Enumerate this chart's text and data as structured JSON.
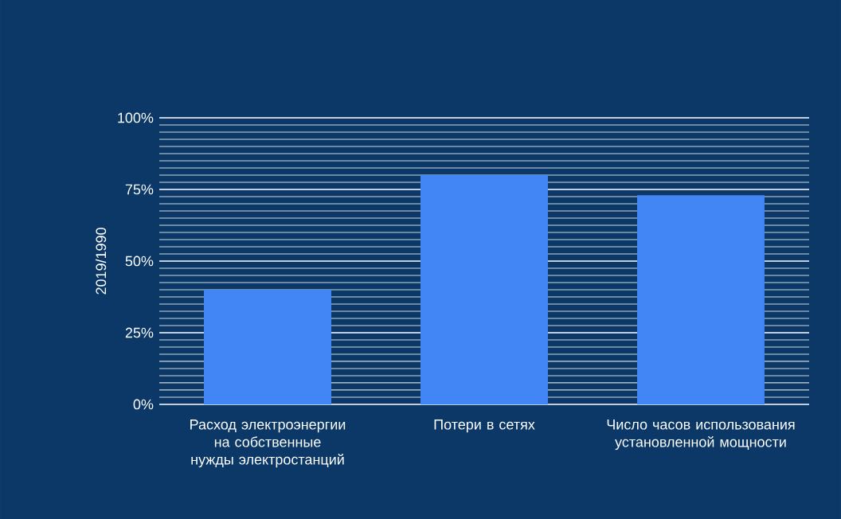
{
  "chart_data": {
    "type": "bar",
    "ylabel": "2019/1990",
    "categories": [
      "Расход электроэнергии на собственные нужды электростанций",
      "Потери в сетях",
      "Число часов использования установленной мощности"
    ],
    "values": [
      40,
      80,
      73
    ],
    "color": "#4285f4",
    "ylim": [
      0,
      100
    ],
    "yticks": [
      {
        "value": 0,
        "label": "0%"
      },
      {
        "value": 25,
        "label": "25%"
      },
      {
        "value": 50,
        "label": "50%"
      },
      {
        "value": 75,
        "label": "75%"
      },
      {
        "value": 100,
        "label": "100%"
      }
    ],
    "grid": "y"
  }
}
